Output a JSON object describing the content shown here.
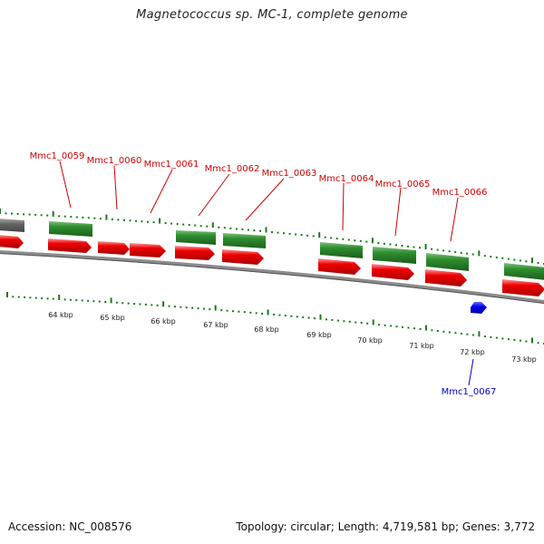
{
  "title": "Magnetococcus sp. MC-1, complete genome",
  "footer": {
    "accession": "Accession: NC_008576",
    "stats": "Topology: circular; Length: 4,719,581 bp; Genes: 3,772"
  },
  "colors": {
    "label_top": "#cc0000",
    "label_bottom": "#0000cc",
    "gene_green": "#2f8f2f",
    "gene_red": "#e60000",
    "gene_blue": "#0000ee",
    "gene_gray": "#666666",
    "backbone": "#8c8c8c",
    "tick": "#1a7a1a"
  },
  "scale_labels": [
    "64 kbp",
    "65 kbp",
    "66 kbp",
    "67 kbp",
    "68 kbp",
    "69 kbp",
    "70 kbp",
    "71 kbp",
    "72 kbp",
    "73 kbp"
  ],
  "top_gene_labels": [
    "Mmc1_0059",
    "Mmc1_0060",
    "Mmc1_0061",
    "Mmc1_0062",
    "Mmc1_0063",
    "Mmc1_0064",
    "Mmc1_0065",
    "Mmc1_0066"
  ],
  "bottom_gene_labels": [
    "Mmc1_0067"
  ]
}
